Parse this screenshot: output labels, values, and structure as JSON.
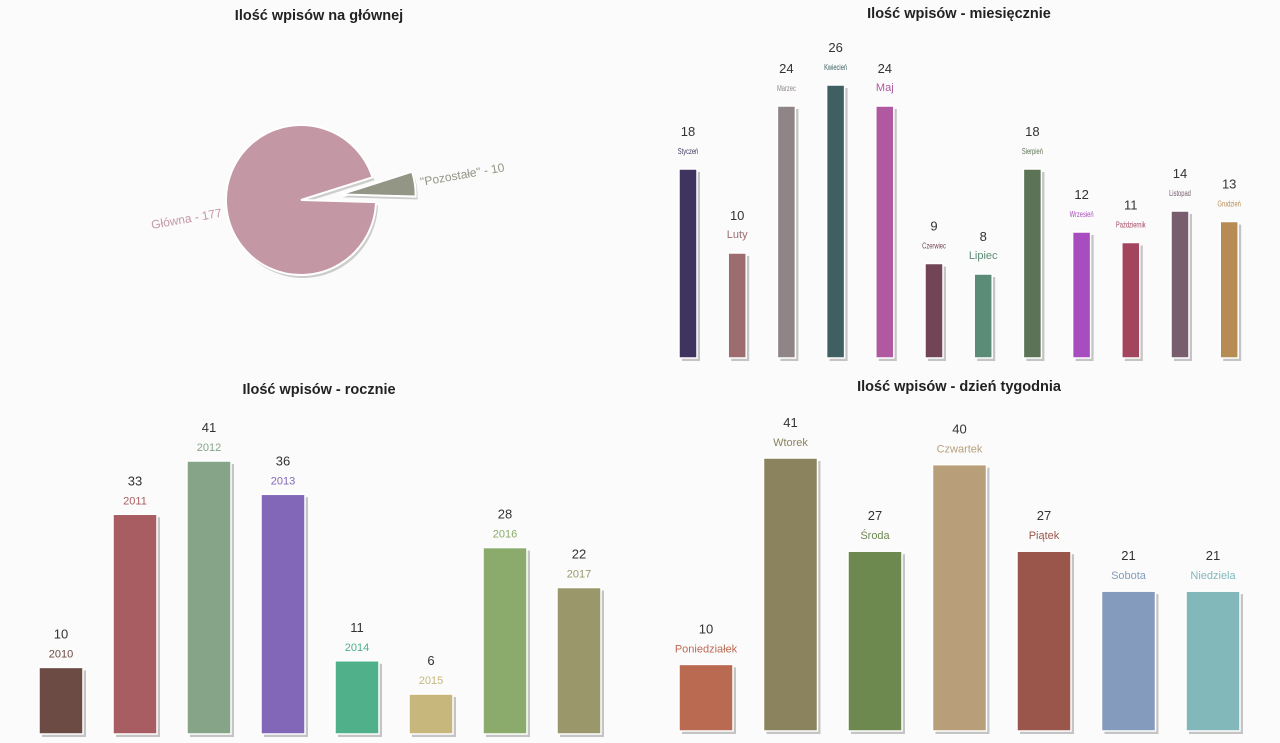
{
  "chart_data": [
    {
      "id": "main",
      "type": "pie",
      "title": "Ilość wpisów na głównej",
      "slices": [
        {
          "label": "Główna - 177",
          "value": 177,
          "color": "#c497a5"
        },
        {
          "label": "\"Pozostałe\" - 10",
          "value": 10,
          "color": "#939685"
        }
      ]
    },
    {
      "id": "monthly",
      "type": "bar",
      "title": "Ilość wpisów - miesięcznie",
      "categories": [
        "Styczeń",
        "Luty",
        "Marzec",
        "Kwiecień",
        "Maj",
        "Czerwiec",
        "Lipiec",
        "Sierpień",
        "Wrzesień",
        "Październik",
        "Listopad",
        "Grudzień"
      ],
      "values": [
        18,
        10,
        24,
        26,
        24,
        9,
        8,
        18,
        12,
        11,
        14,
        13
      ],
      "colors": [
        "#3e345f",
        "#9c6c6f",
        "#8f8587",
        "#3f5f63",
        "#b059a0",
        "#714556",
        "#5b8c77",
        "#5d7356",
        "#a84dbf",
        "#a4455e",
        "#785d6e",
        "#b68c54"
      ],
      "ylim": [
        0,
        26
      ]
    },
    {
      "id": "yearly",
      "type": "bar",
      "title": "Ilość wpisów - rocznie",
      "categories": [
        "2010",
        "2011",
        "2012",
        "2013",
        "2014",
        "2015",
        "2016",
        "2017"
      ],
      "values": [
        10,
        33,
        41,
        36,
        11,
        6,
        28,
        22
      ],
      "colors": [
        "#6c4b45",
        "#a75d62",
        "#85a488",
        "#8267b8",
        "#4fb08a",
        "#c8b77c",
        "#8bab6c",
        "#9a986b"
      ],
      "ylim": [
        0,
        41
      ]
    },
    {
      "id": "weekday",
      "type": "bar",
      "title": "Ilość wpisów - dzień tygodnia",
      "categories": [
        "Poniedziałek",
        "Wtorek",
        "Środa",
        "Czwartek",
        "Piątek",
        "Sobota",
        "Niedziela"
      ],
      "values": [
        10,
        41,
        27,
        40,
        27,
        21,
        21
      ],
      "colors": [
        "#bb6a52",
        "#8a835e",
        "#6d8950",
        "#b89f7a",
        "#9b564c",
        "#859bbd",
        "#83b8bb"
      ],
      "ylim": [
        0,
        41
      ]
    }
  ]
}
